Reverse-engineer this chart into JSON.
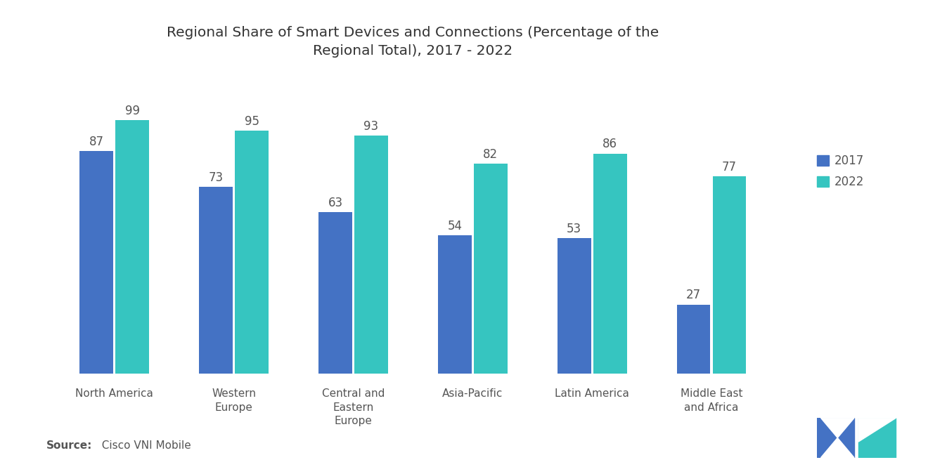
{
  "title": "Regional Share of Smart Devices and Connections (Percentage of the\nRegional Total), 2017 - 2022",
  "categories": [
    "North America",
    "Western\nEurope",
    "Central and\nEastern\nEurope",
    "Asia-Pacific",
    "Latin America",
    "Middle East\nand Africa"
  ],
  "values_2017": [
    87,
    73,
    63,
    54,
    53,
    27
  ],
  "values_2022": [
    99,
    95,
    93,
    82,
    86,
    77
  ],
  "color_2017": "#4472C4",
  "color_2022": "#36C5C0",
  "legend_2017": "2017",
  "legend_2022": "2022",
  "source_bold": "Source:",
  "source_rest": "  Cisco VNI Mobile",
  "background_color": "#ffffff",
  "ylim": [
    0,
    115
  ],
  "bar_width": 0.28,
  "title_fontsize": 14.5,
  "label_fontsize": 12,
  "tick_fontsize": 11,
  "source_fontsize": 11,
  "legend_fontsize": 12
}
